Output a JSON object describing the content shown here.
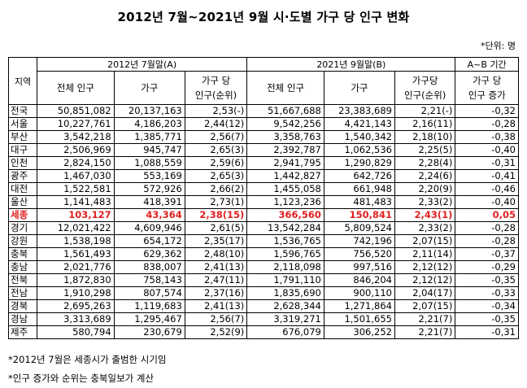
{
  "title": "2012년 7월~2021년 9월 시·도별 가구 당 인구 변화",
  "unit": "*단위: 명",
  "header": {
    "region": "지역",
    "period_a": "2012년 7월말(A)",
    "period_b": "2021년 9월말(B)",
    "change": "A~B 기간",
    "pop_total": "전체 인구",
    "households": "가구",
    "per_hh_a_1": "가구 당",
    "per_hh_a_2": "인구(순위)",
    "per_hh_b_1": "가구당",
    "per_hh_b_2": "인구(순위)",
    "change_1": "가구 당",
    "change_2": "인구 증가"
  },
  "rows": [
    {
      "region": "전국",
      "pop_a": "50,851,082",
      "hh_a": "20,137,163",
      "per_a": "2,53(-)",
      "pop_b": "51,667,688",
      "hh_b": "23,383,689",
      "per_b": "2,21(-)",
      "change": "-0,32"
    },
    {
      "region": "서울",
      "pop_a": "10,227,761",
      "hh_a": "4,186,203",
      "per_a": "2,44(12)",
      "pop_b": "9,542,256",
      "hh_b": "4,421,143",
      "per_b": "2,16(11)",
      "change": "-0,28"
    },
    {
      "region": "부산",
      "pop_a": "3,542,218",
      "hh_a": "1,385,771",
      "per_a": "2,56(7)",
      "pop_b": "3,358,763",
      "hh_b": "1,540,342",
      "per_b": "2,18(10)",
      "change": "-0,38"
    },
    {
      "region": "대구",
      "pop_a": "2,506,969",
      "hh_a": "945,747",
      "per_a": "2,65(3)",
      "pop_b": "2,392,787",
      "hh_b": "1,062,536",
      "per_b": "2,25(5)",
      "change": "-0,40"
    },
    {
      "region": "인천",
      "pop_a": "2,824,150",
      "hh_a": "1,088,559",
      "per_a": "2,59(6)",
      "pop_b": "2,941,795",
      "hh_b": "1,290,829",
      "per_b": "2,28(4)",
      "change": "-0,31"
    },
    {
      "region": "광주",
      "pop_a": "1,467,030",
      "hh_a": "553,169",
      "per_a": "2,65(3)",
      "pop_b": "1,442,827",
      "hh_b": "642,726",
      "per_b": "2,24(6)",
      "change": "-0,41"
    },
    {
      "region": "대전",
      "pop_a": "1,522,581",
      "hh_a": "572,926",
      "per_a": "2,66(2)",
      "pop_b": "1,455,058",
      "hh_b": "661,948",
      "per_b": "2,20(9)",
      "change": "-0,46"
    },
    {
      "region": "울산",
      "pop_a": "1,141,483",
      "hh_a": "418,391",
      "per_a": "2,73(1)",
      "pop_b": "1,123,236",
      "hh_b": "481,483",
      "per_b": "2,33(2)",
      "change": "-0,40"
    },
    {
      "region": "세종",
      "pop_a": "103,127",
      "hh_a": "43,364",
      "per_a": "2,38(15)",
      "pop_b": "366,560",
      "hh_b": "150,841",
      "per_b": "2,43(1)",
      "change": "0,05",
      "highlight": true
    },
    {
      "region": "경기",
      "pop_a": "12,021,422",
      "hh_a": "4,609,946",
      "per_a": "2,61(5)",
      "pop_b": "13,542,284",
      "hh_b": "5,809,524",
      "per_b": "2,33(2)",
      "change": "-0,28"
    },
    {
      "region": "강원",
      "pop_a": "1,538,198",
      "hh_a": "654,172",
      "per_a": "2,35(17)",
      "pop_b": "1,536,765",
      "hh_b": "742,196",
      "per_b": "2,07(15)",
      "change": "-0,28"
    },
    {
      "region": "충북",
      "pop_a": "1,561,493",
      "hh_a": "629,362",
      "per_a": "2,48(10)",
      "pop_b": "1,596,765",
      "hh_b": "756,520",
      "per_b": "2,11(14)",
      "change": "-0,37"
    },
    {
      "region": "충남",
      "pop_a": "2,021,776",
      "hh_a": "838,007",
      "per_a": "2,41(13)",
      "pop_b": "2,118,098",
      "hh_b": "997,516",
      "per_b": "2,12(12)",
      "change": "-0,29"
    },
    {
      "region": "전북",
      "pop_a": "1,872,830",
      "hh_a": "758,143",
      "per_a": "2,47(11)",
      "pop_b": "1,791,110",
      "hh_b": "846,204",
      "per_b": "2,12(12)",
      "change": "-0,35"
    },
    {
      "region": "전남",
      "pop_a": "1,910,298",
      "hh_a": "807,574",
      "per_a": "2,37(16)",
      "pop_b": "1,835,690",
      "hh_b": "900,110",
      "per_b": "2,04(17)",
      "change": "-0,33"
    },
    {
      "region": "경북",
      "pop_a": "2,695,263",
      "hh_a": "1,119,683",
      "per_a": "2,41(13)",
      "pop_b": "2,628,344",
      "hh_b": "1,271,864",
      "per_b": "2,07(15)",
      "change": "-0,34"
    },
    {
      "region": "경남",
      "pop_a": "3,313,689",
      "hh_a": "1,295,467",
      "per_a": "2,56(7)",
      "pop_b": "3,319,271",
      "hh_b": "1,501,655",
      "per_b": "2,21(7)",
      "change": "-0,35"
    },
    {
      "region": "제주",
      "pop_a": "580,794",
      "hh_a": "230,679",
      "per_a": "2,52(9)",
      "pop_b": "676,079",
      "hh_b": "306,252",
      "per_b": "2,21(7)",
      "change": "-0,31"
    }
  ],
  "notes": [
    "*2012년 7월은 세종시가 출범한 시기임",
    "*인구 증가와 순위는 충북일보가 계산"
  ],
  "colors": {
    "highlight": "#e0201e"
  }
}
